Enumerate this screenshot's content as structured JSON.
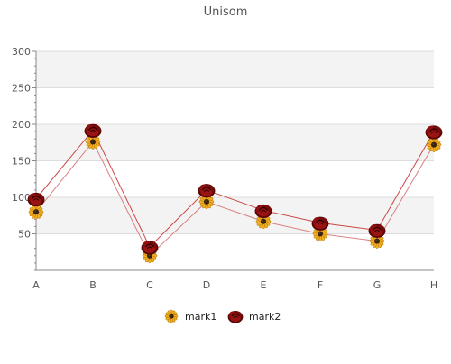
{
  "chart_data": {
    "type": "line",
    "title": "Unisom",
    "xlabel": "",
    "ylabel": "",
    "categories": [
      "A",
      "B",
      "C",
      "D",
      "E",
      "F",
      "G",
      "H"
    ],
    "ylim": [
      0,
      300
    ],
    "yticks": [
      50,
      100,
      150,
      200,
      250,
      300
    ],
    "grid": true,
    "legend_position": "bottom",
    "series": [
      {
        "name": "mark1",
        "values": [
          80,
          176,
          20,
          94,
          67,
          50,
          40,
          172
        ],
        "color": "#d98080",
        "marker": "sunflower-icon"
      },
      {
        "name": "mark2",
        "values": [
          98,
          192,
          32,
          110,
          82,
          65,
          55,
          190
        ],
        "color": "#cc4444",
        "marker": "rose-icon"
      }
    ]
  }
}
